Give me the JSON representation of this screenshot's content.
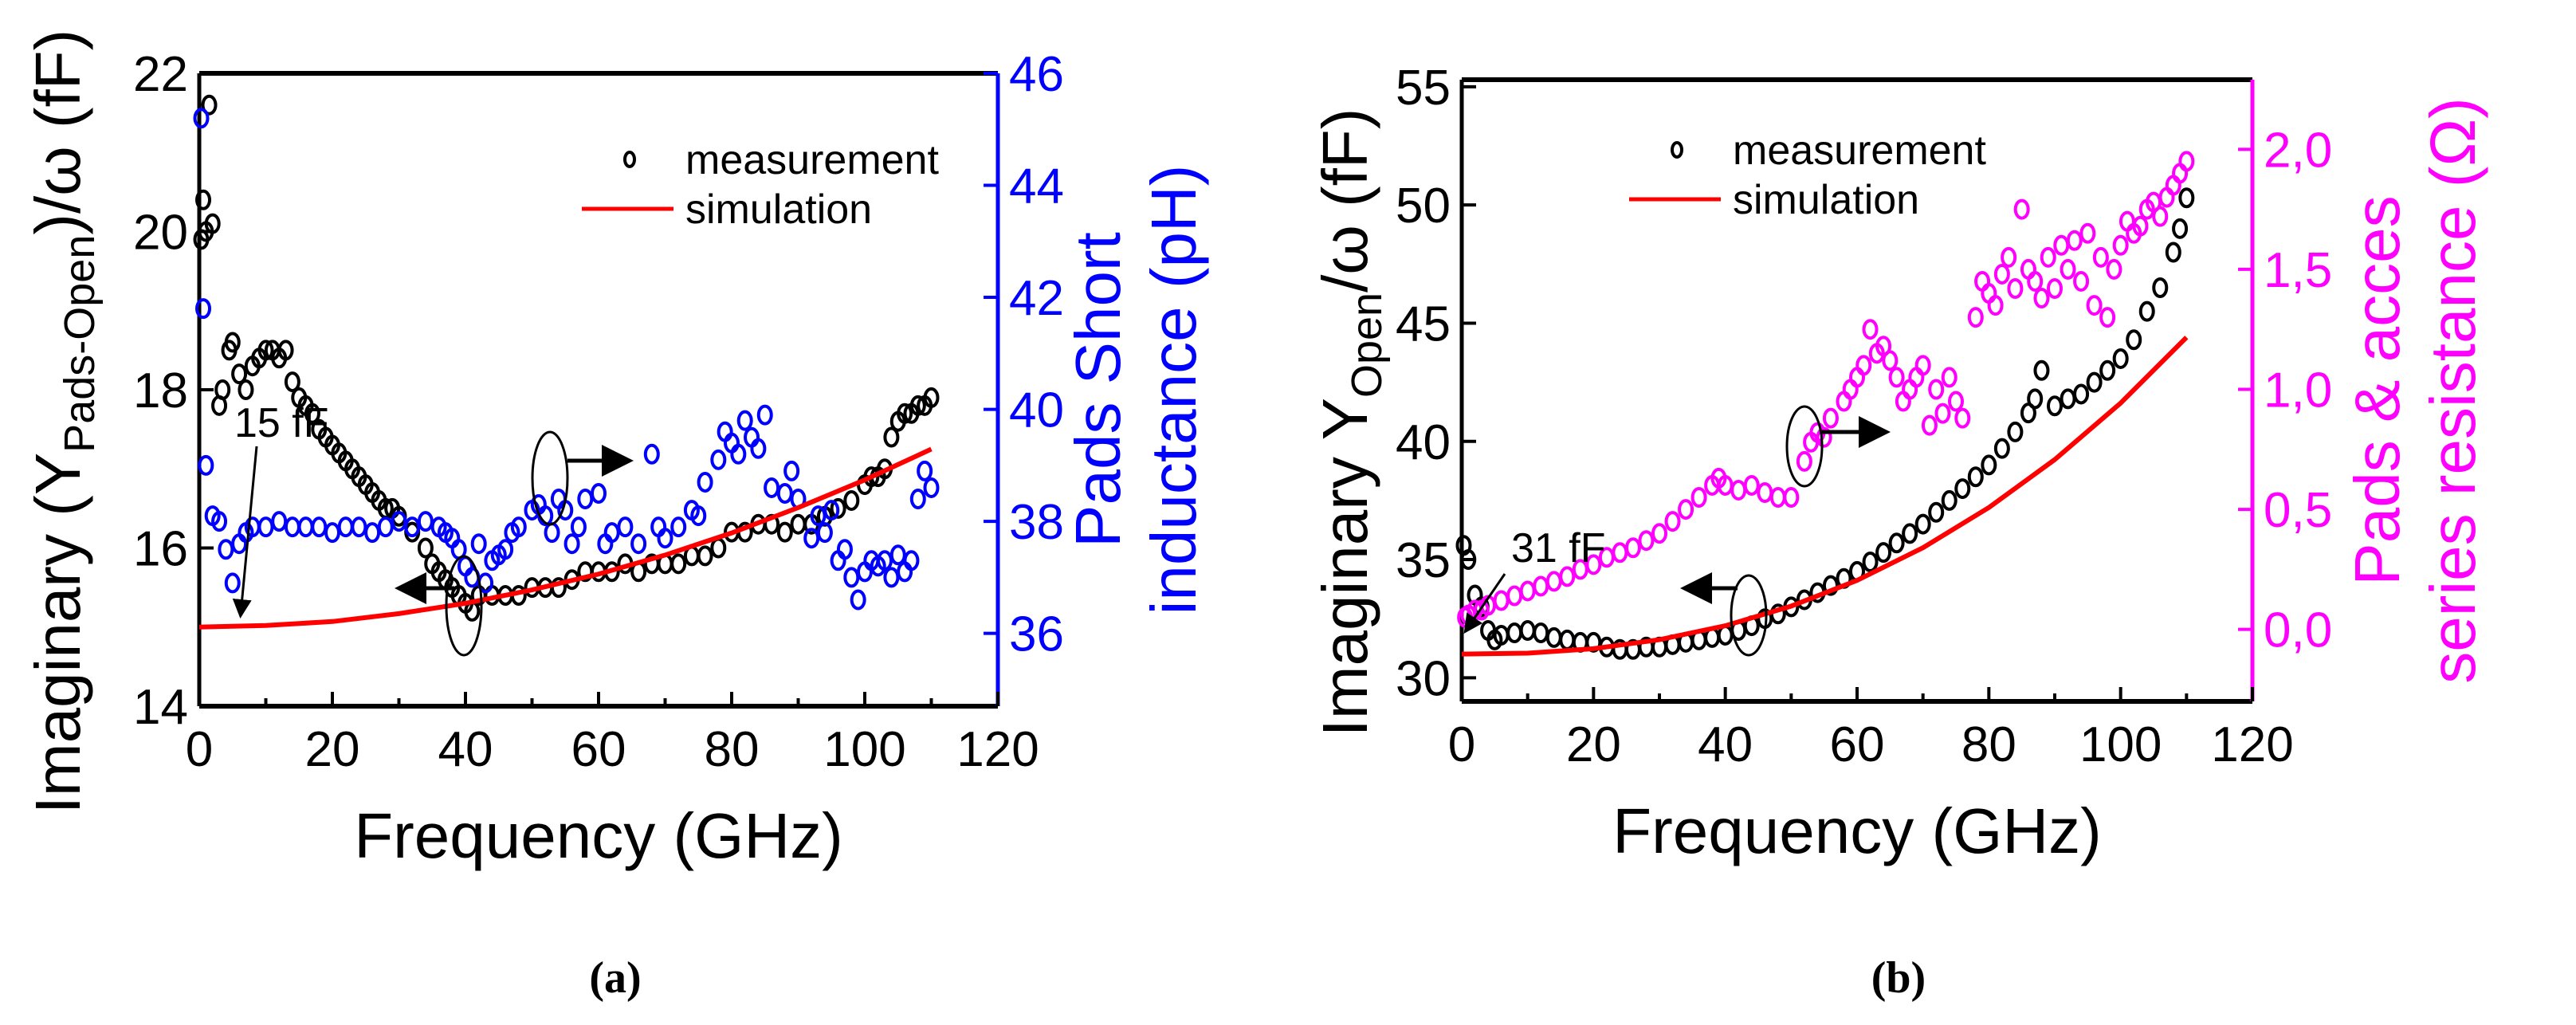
{
  "chart_data": [
    {
      "type": "scatter",
      "panel_label": "a",
      "caption": "(a)",
      "xlabel": "Frequency (GHz)",
      "ylabel": "Imaginary (Y",
      "ylabel_sub": "Pads-Open",
      "ylabel_tail": ")/ω (fF)",
      "y2label_line1": "Pads Short",
      "y2label_line2": "inductance (pH)",
      "xlim": [
        0,
        120
      ],
      "ylim": [
        14,
        22
      ],
      "y2lim": [
        34.7,
        46
      ],
      "xticks": [
        0,
        20,
        40,
        60,
        80,
        100,
        120
      ],
      "yticks": [
        14,
        16,
        18,
        20,
        22
      ],
      "y2ticks": [
        36,
        38,
        40,
        42,
        44,
        46
      ],
      "legend": {
        "position": "top-right",
        "entries": [
          "measurement",
          "simulation"
        ]
      },
      "annotation": "15 fF",
      "colors": {
        "measurement": "#000000",
        "simulation": "#ff0000",
        "right_axis": "#0000ff"
      },
      "series": [
        {
          "name": "measurement",
          "axis": "left",
          "marker": "circle",
          "x": [
            0.3,
            0.6,
            1,
            1.5,
            2,
            3,
            3.5,
            4.5,
            5,
            6,
            7,
            8,
            9,
            10,
            11,
            12,
            13,
            14,
            15,
            16,
            17,
            18,
            19,
            20,
            21,
            22,
            23,
            24,
            25,
            26,
            27,
            28,
            29,
            30,
            32,
            34,
            35,
            36,
            37,
            38,
            39,
            40,
            41,
            42,
            44,
            46,
            48,
            50,
            52,
            54,
            56,
            58,
            60,
            62,
            64,
            66,
            68,
            70,
            72,
            74,
            76,
            78,
            80,
            82,
            84,
            86,
            88,
            90,
            92,
            94,
            96,
            98,
            100,
            101,
            102,
            103,
            104,
            105,
            106,
            107,
            108,
            109,
            110
          ],
          "y": [
            19.9,
            20.4,
            20.0,
            21.6,
            20.1,
            17.8,
            18.0,
            18.5,
            18.6,
            18.2,
            18.0,
            18.3,
            18.4,
            18.5,
            18.5,
            18.4,
            18.5,
            18.1,
            17.9,
            17.8,
            17.7,
            17.5,
            17.4,
            17.3,
            17.2,
            17.1,
            17.0,
            16.9,
            16.8,
            16.7,
            16.6,
            16.5,
            16.5,
            16.4,
            16.2,
            16.0,
            15.8,
            15.7,
            15.6,
            15.5,
            15.4,
            15.3,
            15.2,
            15.4,
            15.4,
            15.4,
            15.4,
            15.5,
            15.5,
            15.5,
            15.6,
            15.7,
            15.7,
            15.7,
            15.8,
            15.7,
            15.8,
            15.8,
            15.8,
            15.9,
            15.9,
            16.0,
            16.2,
            16.2,
            16.3,
            16.3,
            16.2,
            16.3,
            16.3,
            16.4,
            16.5,
            16.6,
            16.8,
            16.9,
            16.9,
            17.0,
            17.4,
            17.6,
            17.7,
            17.7,
            17.8,
            17.8,
            17.9
          ]
        },
        {
          "name": "inductance",
          "axis": "right",
          "marker": "circle",
          "x": [
            0.3,
            0.6,
            1,
            2,
            3,
            4,
            5,
            6,
            7,
            8,
            10,
            12,
            14,
            16,
            18,
            20,
            22,
            24,
            26,
            28,
            30,
            32,
            34,
            36,
            37,
            38,
            39,
            40,
            41,
            42,
            43,
            44,
            45,
            46,
            47,
            48,
            50,
            51,
            52,
            53,
            54,
            55,
            56,
            57,
            58,
            60,
            61,
            62,
            64,
            66,
            68,
            69,
            70,
            72,
            74,
            75,
            76,
            78,
            79,
            80,
            81,
            82,
            83,
            84,
            85,
            86,
            88,
            89,
            90,
            92,
            93,
            94,
            95,
            96,
            97,
            98,
            99,
            100,
            101,
            102,
            103,
            104,
            105,
            106,
            107,
            108,
            109,
            110
          ],
          "y": [
            45.2,
            41.8,
            39.0,
            38.1,
            38.0,
            37.5,
            36.9,
            37.6,
            37.8,
            37.9,
            37.9,
            38.0,
            37.9,
            37.9,
            37.9,
            37.8,
            37.9,
            37.9,
            37.8,
            37.9,
            38.0,
            37.9,
            38.0,
            37.9,
            37.8,
            37.7,
            37.5,
            37.2,
            37.0,
            37.6,
            36.9,
            37.3,
            37.4,
            37.5,
            37.8,
            37.9,
            38.2,
            38.3,
            38.1,
            37.8,
            38.4,
            38.2,
            37.6,
            37.9,
            38.4,
            38.5,
            37.6,
            37.8,
            37.9,
            37.6,
            39.2,
            37.9,
            37.7,
            37.9,
            38.2,
            38.1,
            38.7,
            39.1,
            39.6,
            39.4,
            39.2,
            39.8,
            39.5,
            39.3,
            39.9,
            38.6,
            38.5,
            38.9,
            38.4,
            37.7,
            38.1,
            37.8,
            38.2,
            37.3,
            37.5,
            37.0,
            36.6,
            37.1,
            37.3,
            37.2,
            37.3,
            37.0,
            37.4,
            37.1,
            37.3,
            38.4,
            38.9,
            38.6
          ]
        },
        {
          "name": "simulation",
          "axis": "left",
          "type": "line",
          "x": [
            0,
            10,
            20,
            30,
            40,
            50,
            60,
            70,
            80,
            90,
            100,
            110
          ],
          "y": [
            15.0,
            15.02,
            15.07,
            15.17,
            15.3,
            15.47,
            15.67,
            15.91,
            16.19,
            16.51,
            16.86,
            17.25
          ]
        }
      ]
    },
    {
      "type": "scatter",
      "panel_label": "b",
      "caption": "(b)",
      "xlabel": "Frequency (GHz)",
      "ylabel": "Imaginary Y",
      "ylabel_sub": "Open",
      "ylabel_tail": "/ω (fF)",
      "y2label_line1": "Pads & acces",
      "y2label_line2": "series resistance (Ω)",
      "xlim": [
        0,
        120
      ],
      "ylim": [
        29,
        55.3
      ],
      "y2lim": [
        -0.3,
        2.29
      ],
      "xticks": [
        0,
        20,
        40,
        60,
        80,
        100,
        120
      ],
      "yticks": [
        30,
        35,
        40,
        45,
        50,
        55
      ],
      "y2ticks": [
        "0,0",
        "0,5",
        "1,0",
        "1,5",
        "2,0"
      ],
      "y2tick_values": [
        0,
        0.5,
        1.0,
        1.5,
        2.0
      ],
      "legend": {
        "position": "top-right",
        "entries": [
          "measurement",
          "simulation"
        ]
      },
      "annotation": "31 fF",
      "colors": {
        "measurement": "#000000",
        "simulation": "#ff0000",
        "right_axis": "#ff00ff"
      },
      "series": [
        {
          "name": "measurement",
          "axis": "left",
          "marker": "circle",
          "x": [
            0.3,
            1,
            2,
            3,
            4,
            5,
            6,
            8,
            10,
            12,
            14,
            16,
            18,
            20,
            22,
            24,
            26,
            28,
            30,
            32,
            34,
            36,
            38,
            40,
            42,
            44,
            46,
            48,
            50,
            52,
            54,
            56,
            58,
            60,
            62,
            64,
            66,
            68,
            70,
            72,
            74,
            76,
            78,
            80,
            82,
            84,
            86,
            87,
            88,
            90,
            92,
            94,
            96,
            98,
            100,
            102,
            104,
            106,
            108,
            109,
            110
          ],
          "y": [
            35.6,
            35.0,
            33.5,
            33.0,
            32.0,
            31.6,
            31.8,
            31.9,
            32.0,
            31.9,
            31.7,
            31.6,
            31.5,
            31.5,
            31.3,
            31.2,
            31.2,
            31.3,
            31.3,
            31.4,
            31.5,
            31.6,
            31.7,
            31.8,
            32.0,
            32.2,
            32.5,
            32.7,
            33.0,
            33.3,
            33.6,
            33.9,
            34.2,
            34.5,
            34.9,
            35.3,
            35.7,
            36.1,
            36.5,
            37.0,
            37.5,
            38.0,
            38.5,
            39.0,
            39.7,
            40.4,
            41.2,
            41.8,
            43.0,
            41.5,
            41.8,
            42.0,
            42.5,
            43.0,
            43.5,
            44.3,
            45.5,
            46.5,
            48.0,
            49.0,
            50.3
          ]
        },
        {
          "name": "resistance",
          "axis": "right",
          "marker": "circle",
          "x": [
            0.5,
            1,
            2,
            3,
            4,
            6,
            8,
            10,
            12,
            14,
            16,
            18,
            20,
            22,
            24,
            26,
            28,
            30,
            32,
            34,
            36,
            38,
            39,
            40,
            42,
            44,
            46,
            48,
            50,
            52,
            53,
            54,
            55,
            56,
            58,
            59,
            60,
            61,
            62,
            63,
            64,
            65,
            66,
            67,
            68,
            69,
            70,
            71,
            72,
            73,
            74,
            75,
            76,
            78,
            79,
            80,
            81,
            82,
            83,
            84,
            85,
            86,
            87,
            88,
            89,
            90,
            91,
            92,
            93,
            94,
            95,
            96,
            97,
            98,
            99,
            100,
            101,
            102,
            103,
            104,
            105,
            106,
            107,
            108,
            109,
            110
          ],
          "y": [
            0.05,
            0.06,
            0.08,
            0.08,
            0.1,
            0.12,
            0.14,
            0.16,
            0.18,
            0.2,
            0.22,
            0.25,
            0.27,
            0.3,
            0.32,
            0.34,
            0.37,
            0.4,
            0.45,
            0.5,
            0.55,
            0.6,
            0.63,
            0.6,
            0.58,
            0.6,
            0.57,
            0.55,
            0.55,
            0.7,
            0.78,
            0.82,
            0.8,
            0.88,
            0.95,
            1.0,
            1.05,
            1.1,
            1.25,
            1.15,
            1.18,
            1.12,
            1.05,
            0.95,
            1.0,
            1.05,
            1.1,
            0.85,
            1.0,
            0.9,
            1.05,
            0.95,
            0.88,
            1.3,
            1.45,
            1.4,
            1.35,
            1.48,
            1.55,
            1.42,
            1.75,
            1.5,
            1.45,
            1.38,
            1.55,
            1.42,
            1.6,
            1.5,
            1.62,
            1.45,
            1.65,
            1.35,
            1.55,
            1.3,
            1.5,
            1.6,
            1.7,
            1.65,
            1.68,
            1.75,
            1.78,
            1.72,
            1.8,
            1.85,
            1.9,
            1.95
          ]
        },
        {
          "name": "simulation",
          "axis": "left",
          "type": "line",
          "x": [
            0,
            10,
            20,
            30,
            40,
            50,
            60,
            70,
            80,
            90,
            100,
            110
          ],
          "y": [
            31.0,
            31.04,
            31.23,
            31.61,
            32.2,
            33.03,
            34.12,
            35.5,
            37.2,
            39.23,
            41.62,
            44.4
          ]
        }
      ]
    }
  ]
}
